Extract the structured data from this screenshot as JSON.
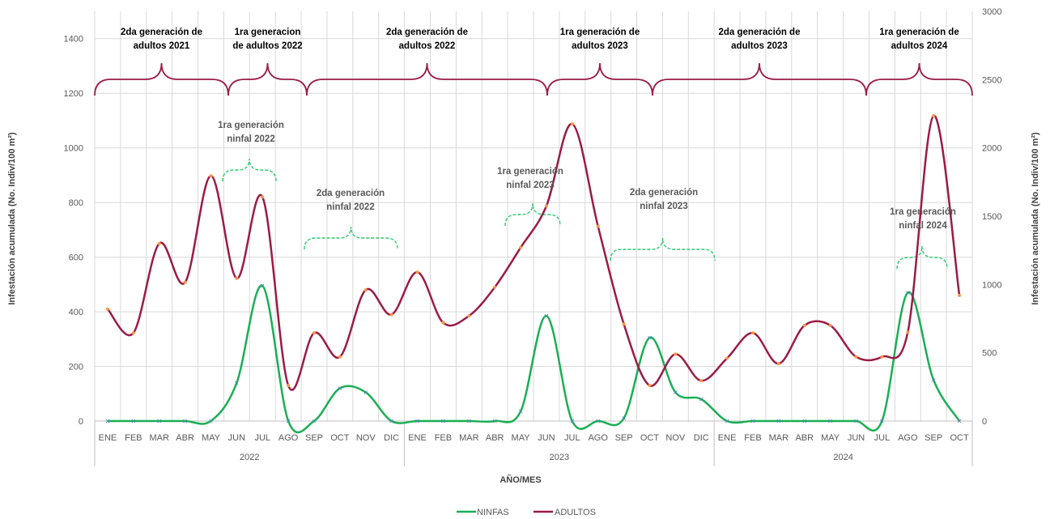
{
  "chart_data": {
    "type": "line",
    "x_axis_title": "AÑO/MES",
    "y_left_title": "Infestación acumulada (No. Indiv/100 m²)",
    "y_right_title": "Infestación acumulada (No. Indiv/100 m²)",
    "y_left_range": [
      0,
      1500
    ],
    "y_left_ticks": [
      "0",
      "200",
      "400",
      "600",
      "800",
      "1000",
      "1200",
      "1400"
    ],
    "y_right_range": [
      0,
      3000
    ],
    "y_right_ticks": [
      "0",
      "500",
      "1000",
      "1500",
      "2000",
      "2500",
      "3000"
    ],
    "years": [
      "2022",
      "2023",
      "2024"
    ],
    "months": [
      "ENE",
      "FEB",
      "MAR",
      "ABR",
      "MAY",
      "JUN",
      "JUL",
      "AGO",
      "SEP",
      "OCT",
      "NOV",
      "DIC",
      "ENE",
      "FEB",
      "MAR",
      "ABR",
      "MAY",
      "JUN",
      "JUL",
      "AGO",
      "SEP",
      "OCT",
      "NOV",
      "DIC",
      "ENE",
      "FEB",
      "MAR",
      "ABR",
      "MAY",
      "JUN",
      "JUL",
      "AGO",
      "SEP",
      "OCT"
    ],
    "legend_position": "bottom",
    "series": [
      {
        "name": "NINFAS",
        "axis": "left",
        "color": "#1aaf54",
        "marker_color": "#4f81bd",
        "values": [
          0,
          0,
          0,
          0,
          0,
          140,
          495,
          0,
          0,
          120,
          105,
          0,
          0,
          0,
          0,
          0,
          35,
          385,
          0,
          0,
          10,
          305,
          105,
          80,
          0,
          0,
          0,
          0,
          0,
          0,
          0,
          470,
          150,
          0
        ]
      },
      {
        "name": "ADULTOS",
        "axis": "right",
        "color": "#9b1b45",
        "marker_color": "#f79646",
        "values": [
          820,
          645,
          1300,
          1015,
          1795,
          1045,
          1640,
          260,
          645,
          470,
          960,
          780,
          1090,
          720,
          770,
          980,
          1270,
          1575,
          2175,
          1425,
          710,
          260,
          490,
          295,
          460,
          645,
          420,
          700,
          700,
          470,
          470,
          650,
          2235,
          920
        ]
      }
    ],
    "adult_generations": [
      {
        "label": [
          "2da generación de",
          "adultos 2021"
        ]
      },
      {
        "label": [
          "1ra generacion",
          "de adultos 2022"
        ]
      },
      {
        "label": [
          "2da generación de",
          "adultos 2022"
        ]
      },
      {
        "label": [
          "1ra generación de",
          "adultos 2023"
        ]
      },
      {
        "label": [
          "2da generación de",
          "adultos 2023"
        ]
      },
      {
        "label": [
          "1ra generación de",
          "adultos 2024"
        ]
      }
    ],
    "nymph_generations": [
      {
        "label": [
          "1ra generación",
          "ninfal 2022"
        ]
      },
      {
        "label": [
          "2da generación",
          "ninfal 2022"
        ]
      },
      {
        "label": [
          "1ra generación",
          "ninfal 2023"
        ]
      },
      {
        "label": [
          "2da generación",
          "ninfal 2023"
        ]
      },
      {
        "label": [
          "1ra generación",
          "ninfal 2024"
        ]
      }
    ],
    "colors": {
      "grid": "#d9d9d9",
      "adult_brace": "#9b1b45",
      "nymph_brace": "#2ecc71"
    }
  }
}
